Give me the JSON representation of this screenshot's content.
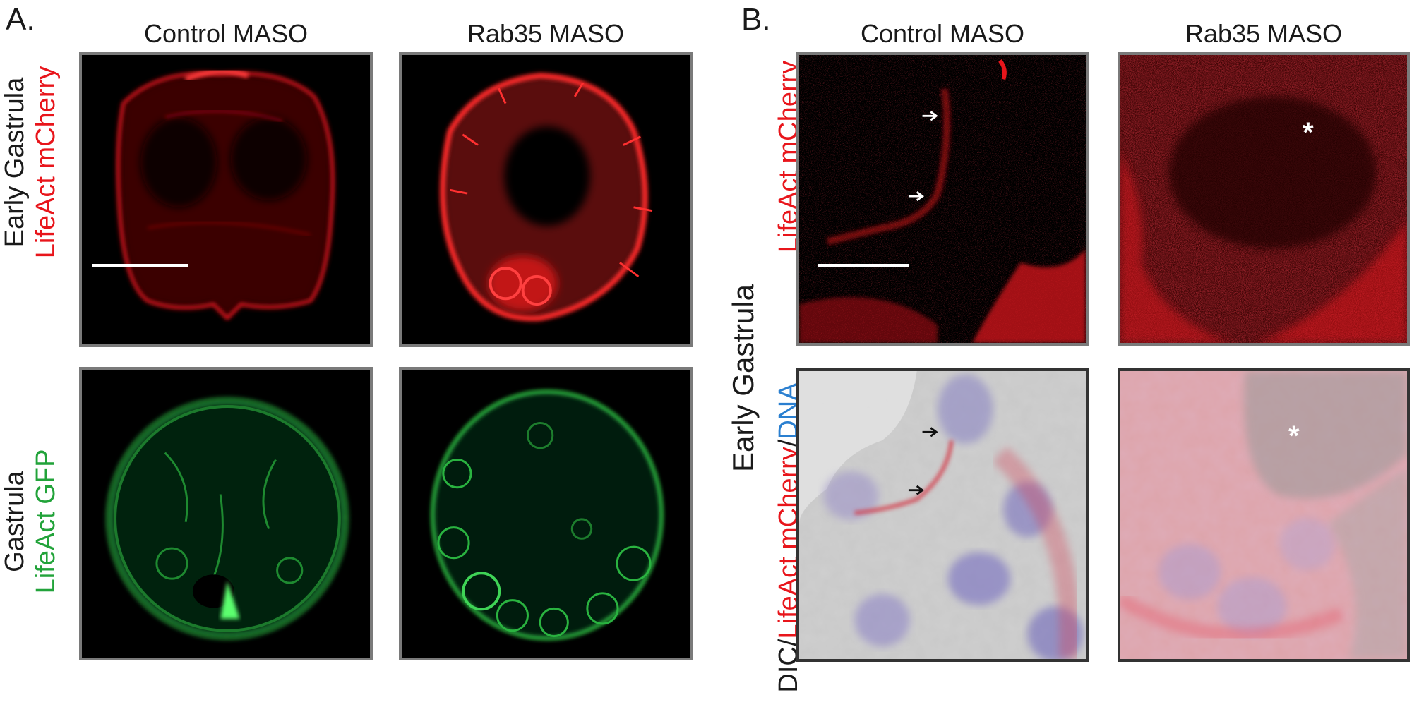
{
  "panel_a": {
    "letter": "A.",
    "col_titles": [
      "Control MASO",
      "Rab35 MASO"
    ],
    "row1_label": {
      "stage": "Early Gastrula",
      "marker": "LifeAct mCherry"
    },
    "row2_label": {
      "stage": "Gastrula",
      "marker": "LifeAct GFP"
    }
  },
  "panel_b": {
    "letter": "B.",
    "col_titles": [
      "Control MASO",
      "Rab35 MASO"
    ],
    "stage_label": "Early Gastrula",
    "row1_marker": "LifeAct mCherry",
    "row2_marker": {
      "p1": "DIC/",
      "p2": "LifeAct mCherry",
      "p3": "/",
      "p4": "DNA"
    },
    "asterisk": "*"
  },
  "colors": {
    "mcherry": "#e8151b",
    "gfp": "#22a33a",
    "dna": "#2a7fd0",
    "frame": "#7a7a7a"
  }
}
